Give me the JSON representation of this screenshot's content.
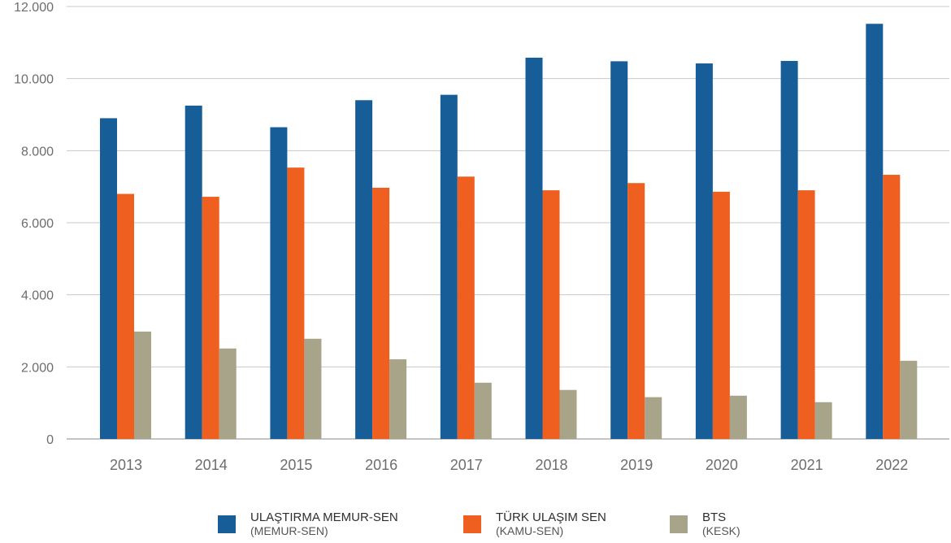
{
  "chart_data": {
    "type": "bar",
    "categories": [
      "2013",
      "2014",
      "2015",
      "2016",
      "2017",
      "2018",
      "2019",
      "2020",
      "2021",
      "2022"
    ],
    "series": [
      {
        "name": "ULAŞTIRMA MEMUR-SEN",
        "subtitle": "(MEMUR-SEN)",
        "color": "#175d98",
        "values": [
          8900,
          9250,
          8650,
          9400,
          9550,
          10580,
          10480,
          10420,
          10490,
          11520
        ]
      },
      {
        "name": "TÜRK ULAŞIM SEN",
        "subtitle": "(KAMU-SEN)",
        "color": "#ef5f20",
        "values": [
          6800,
          6720,
          7530,
          6970,
          7280,
          6900,
          7100,
          6860,
          6900,
          7330
        ]
      },
      {
        "name": "BTS",
        "subtitle": "(KESK)",
        "color": "#a8a48a",
        "values": [
          2980,
          2510,
          2780,
          2210,
          1560,
          1360,
          1160,
          1200,
          1020,
          2170
        ]
      }
    ],
    "yticks": [
      "0",
      "2.000",
      "4.000",
      "6.000",
      "8.000",
      "10.000",
      "12.000"
    ],
    "ylim": [
      0,
      12000
    ],
    "grid": true,
    "legend_position": "bottom"
  }
}
